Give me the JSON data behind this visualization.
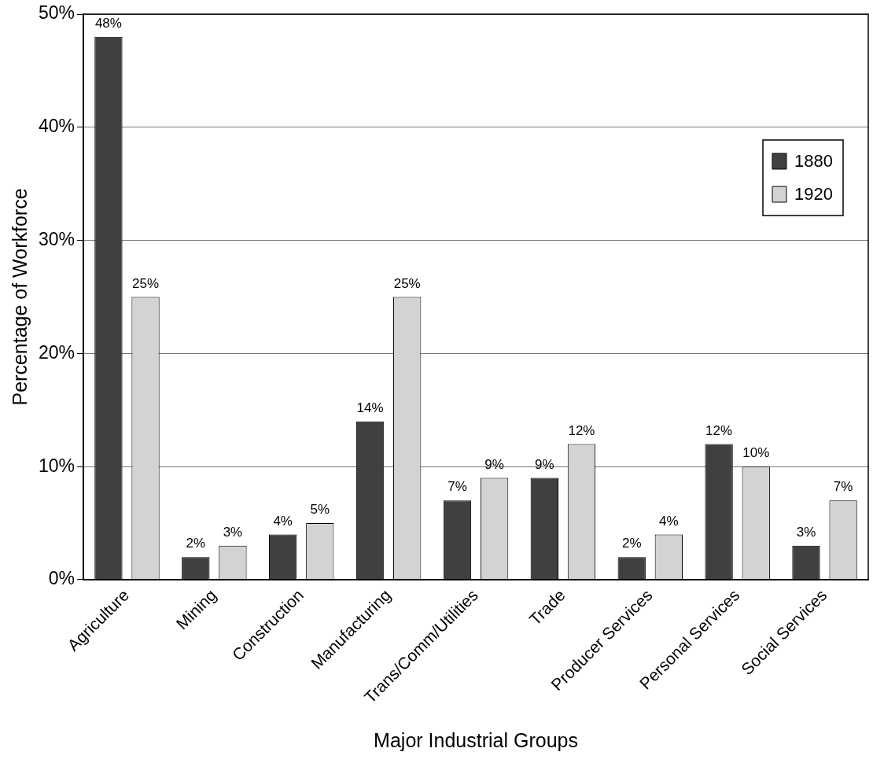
{
  "chart_data": {
    "type": "bar",
    "xlabel": "Major Industrial Groups",
    "ylabel": "Percentage of Workforce",
    "categories": [
      "Agriculture",
      "Mining",
      "Construction",
      "Manufacturing",
      "Trans/Comm/Utilities",
      "Trade",
      "Producer Services",
      "Personal Services",
      "Social Services"
    ],
    "series": [
      {
        "name": "1880",
        "color": "#404040",
        "values": [
          48,
          2,
          4,
          14,
          7,
          9,
          2,
          12,
          3
        ],
        "value_labels": [
          "48%",
          "2%",
          "4%",
          "14%",
          "7%",
          "9%",
          "2%",
          "12%",
          "3%"
        ]
      },
      {
        "name": "1920",
        "color": "#d3d3d3",
        "values": [
          25,
          3,
          5,
          25,
          9,
          12,
          4,
          10,
          7
        ],
        "value_labels": [
          "25%",
          "3%",
          "5%",
          "25%",
          "9%",
          "12%",
          "4%",
          "10%",
          "7%"
        ]
      }
    ],
    "ylim": [
      0,
      50
    ],
    "yticks": [
      {
        "value": 0,
        "label": "0%"
      },
      {
        "value": 10,
        "label": "10%"
      },
      {
        "value": 20,
        "label": "20%"
      },
      {
        "value": 30,
        "label": "30%"
      },
      {
        "value": 40,
        "label": "40%"
      },
      {
        "value": 50,
        "label": "50%"
      }
    ],
    "grid": "y",
    "legend": "top right"
  }
}
